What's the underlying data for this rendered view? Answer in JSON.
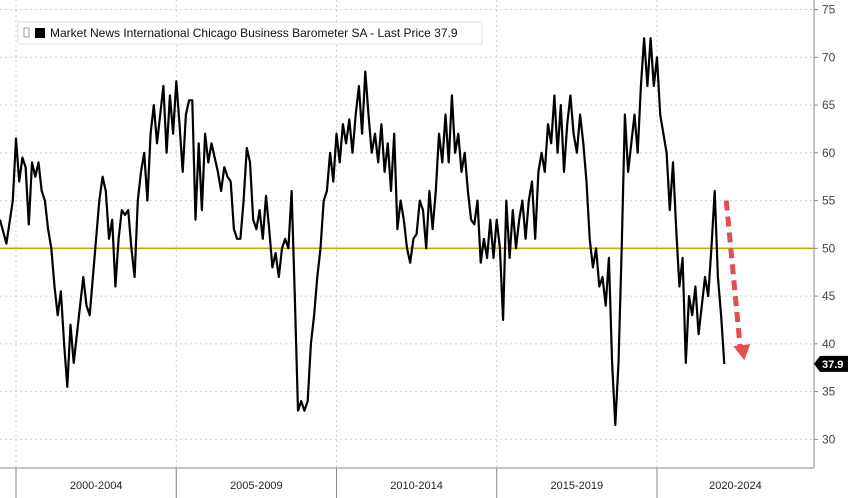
{
  "chart_data": {
    "type": "line",
    "title": "",
    "xlabel": "",
    "ylabel": "",
    "ylim": [
      27,
      76
    ],
    "y_ticks": [
      30,
      35,
      40,
      45,
      50,
      55,
      60,
      65,
      70,
      75
    ],
    "x_period_labels": [
      "2000-2004",
      "2005-2009",
      "2010-2014",
      "2015-2019",
      "2020-2024"
    ],
    "x_range": [
      1999.5,
      2024.9
    ],
    "reference_line": {
      "value": 50,
      "color": "#c9a800"
    },
    "series": [
      {
        "name": "Market News International Chicago Business Barometer SA",
        "color": "#000000",
        "points": [
          [
            1999.5,
            53.0
          ],
          [
            1999.7,
            50.5
          ],
          [
            1999.9,
            55.0
          ],
          [
            2000.0,
            61.5
          ],
          [
            2000.1,
            57.0
          ],
          [
            2000.2,
            59.5
          ],
          [
            2000.3,
            58.5
          ],
          [
            2000.4,
            52.5
          ],
          [
            2000.5,
            59.0
          ],
          [
            2000.6,
            57.5
          ],
          [
            2000.7,
            59.0
          ],
          [
            2000.8,
            56.0
          ],
          [
            2000.9,
            55.0
          ],
          [
            2001.0,
            52.0
          ],
          [
            2001.1,
            50.0
          ],
          [
            2001.2,
            46.0
          ],
          [
            2001.3,
            43.0
          ],
          [
            2001.4,
            45.5
          ],
          [
            2001.5,
            40.0
          ],
          [
            2001.6,
            35.5
          ],
          [
            2001.7,
            42.0
          ],
          [
            2001.8,
            38.0
          ],
          [
            2001.9,
            41.0
          ],
          [
            2002.0,
            44.0
          ],
          [
            2002.1,
            47.0
          ],
          [
            2002.2,
            44.0
          ],
          [
            2002.3,
            43.0
          ],
          [
            2002.4,
            47.0
          ],
          [
            2002.5,
            51.0
          ],
          [
            2002.6,
            55.0
          ],
          [
            2002.7,
            57.5
          ],
          [
            2002.8,
            56.0
          ],
          [
            2002.9,
            51.0
          ],
          [
            2003.0,
            53.0
          ],
          [
            2003.1,
            46.0
          ],
          [
            2003.2,
            51.0
          ],
          [
            2003.3,
            54.0
          ],
          [
            2003.4,
            53.5
          ],
          [
            2003.5,
            54.0
          ],
          [
            2003.6,
            50.0
          ],
          [
            2003.7,
            47.0
          ],
          [
            2003.8,
            55.0
          ],
          [
            2003.9,
            58.0
          ],
          [
            2004.0,
            60.0
          ],
          [
            2004.1,
            55.0
          ],
          [
            2004.2,
            62.0
          ],
          [
            2004.3,
            65.0
          ],
          [
            2004.4,
            61.0
          ],
          [
            2004.5,
            64.0
          ],
          [
            2004.6,
            67.0
          ],
          [
            2004.7,
            60.0
          ],
          [
            2004.8,
            66.0
          ],
          [
            2004.9,
            62.0
          ],
          [
            2005.0,
            67.5
          ],
          [
            2005.1,
            63.0
          ],
          [
            2005.2,
            58.0
          ],
          [
            2005.3,
            64.0
          ],
          [
            2005.4,
            65.5
          ],
          [
            2005.5,
            65.5
          ],
          [
            2005.6,
            53.0
          ],
          [
            2005.7,
            61.0
          ],
          [
            2005.8,
            54.0
          ],
          [
            2005.9,
            62.0
          ],
          [
            2006.0,
            59.0
          ],
          [
            2006.1,
            61.0
          ],
          [
            2006.2,
            59.5
          ],
          [
            2006.3,
            58.0
          ],
          [
            2006.4,
            56.0
          ],
          [
            2006.5,
            58.5
          ],
          [
            2006.6,
            57.5
          ],
          [
            2006.7,
            57.0
          ],
          [
            2006.8,
            52.0
          ],
          [
            2006.9,
            51.0
          ],
          [
            2007.0,
            51.0
          ],
          [
            2007.1,
            55.0
          ],
          [
            2007.2,
            60.5
          ],
          [
            2007.3,
            59.0
          ],
          [
            2007.4,
            53.0
          ],
          [
            2007.5,
            52.0
          ],
          [
            2007.6,
            54.0
          ],
          [
            2007.7,
            51.0
          ],
          [
            2007.8,
            55.5
          ],
          [
            2007.9,
            52.0
          ],
          [
            2008.0,
            48.0
          ],
          [
            2008.1,
            49.5
          ],
          [
            2008.2,
            47.0
          ],
          [
            2008.3,
            50.0
          ],
          [
            2008.4,
            51.0
          ],
          [
            2008.5,
            50.0
          ],
          [
            2008.6,
            56.0
          ],
          [
            2008.7,
            45.0
          ],
          [
            2008.8,
            33.0
          ],
          [
            2008.9,
            34.0
          ],
          [
            2009.0,
            33.0
          ],
          [
            2009.1,
            34.0
          ],
          [
            2009.2,
            40.0
          ],
          [
            2009.3,
            43.0
          ],
          [
            2009.4,
            47.0
          ],
          [
            2009.5,
            50.0
          ],
          [
            2009.6,
            55.0
          ],
          [
            2009.7,
            56.0
          ],
          [
            2009.8,
            60.0
          ],
          [
            2009.9,
            57.0
          ],
          [
            2010.0,
            62.0
          ],
          [
            2010.1,
            59.0
          ],
          [
            2010.2,
            63.0
          ],
          [
            2010.3,
            61.0
          ],
          [
            2010.4,
            63.5
          ],
          [
            2010.5,
            60.0
          ],
          [
            2010.6,
            64.0
          ],
          [
            2010.7,
            67.0
          ],
          [
            2010.8,
            62.0
          ],
          [
            2010.9,
            68.5
          ],
          [
            2011.0,
            64.0
          ],
          [
            2011.1,
            60.0
          ],
          [
            2011.2,
            62.0
          ],
          [
            2011.3,
            59.0
          ],
          [
            2011.4,
            63.0
          ],
          [
            2011.5,
            58.0
          ],
          [
            2011.6,
            61.0
          ],
          [
            2011.7,
            56.0
          ],
          [
            2011.8,
            62.0
          ],
          [
            2011.9,
            52.0
          ],
          [
            2012.0,
            55.0
          ],
          [
            2012.1,
            53.0
          ],
          [
            2012.2,
            50.0
          ],
          [
            2012.3,
            48.5
          ],
          [
            2012.4,
            51.0
          ],
          [
            2012.5,
            51.5
          ],
          [
            2012.6,
            55.0
          ],
          [
            2012.7,
            54.0
          ],
          [
            2012.8,
            50.0
          ],
          [
            2012.9,
            56.0
          ],
          [
            2013.0,
            52.0
          ],
          [
            2013.1,
            56.0
          ],
          [
            2013.2,
            62.0
          ],
          [
            2013.3,
            59.0
          ],
          [
            2013.4,
            64.0
          ],
          [
            2013.5,
            59.0
          ],
          [
            2013.6,
            66.0
          ],
          [
            2013.7,
            60.0
          ],
          [
            2013.8,
            62.0
          ],
          [
            2013.9,
            58.0
          ],
          [
            2014.0,
            60.0
          ],
          [
            2014.1,
            56.0
          ],
          [
            2014.2,
            53.0
          ],
          [
            2014.3,
            52.5
          ],
          [
            2014.4,
            55.0
          ],
          [
            2014.5,
            48.5
          ],
          [
            2014.6,
            51.0
          ],
          [
            2014.7,
            49.0
          ],
          [
            2014.8,
            53.0
          ],
          [
            2014.9,
            49.0
          ],
          [
            2015.0,
            53.0
          ],
          [
            2015.1,
            50.0
          ],
          [
            2015.2,
            42.5
          ],
          [
            2015.3,
            55.0
          ],
          [
            2015.4,
            49.0
          ],
          [
            2015.5,
            54.0
          ],
          [
            2015.6,
            50.0
          ],
          [
            2015.7,
            53.0
          ],
          [
            2015.8,
            55.0
          ],
          [
            2015.9,
            51.0
          ],
          [
            2016.0,
            55.0
          ],
          [
            2016.1,
            57.0
          ],
          [
            2016.2,
            51.0
          ],
          [
            2016.3,
            58.0
          ],
          [
            2016.4,
            60.0
          ],
          [
            2016.5,
            58.0
          ],
          [
            2016.6,
            63.0
          ],
          [
            2016.7,
            61.0
          ],
          [
            2016.8,
            66.0
          ],
          [
            2016.9,
            60.0
          ],
          [
            2017.0,
            65.0
          ],
          [
            2017.1,
            58.0
          ],
          [
            2017.2,
            63.0
          ],
          [
            2017.3,
            66.0
          ],
          [
            2017.4,
            62.0
          ],
          [
            2017.5,
            60.0
          ],
          [
            2017.6,
            64.0
          ],
          [
            2017.7,
            61.0
          ],
          [
            2017.8,
            57.0
          ],
          [
            2017.9,
            51.0
          ],
          [
            2018.0,
            48.0
          ],
          [
            2018.1,
            50.0
          ],
          [
            2018.2,
            46.0
          ],
          [
            2018.3,
            47.0
          ],
          [
            2018.4,
            44.0
          ],
          [
            2018.5,
            49.0
          ],
          [
            2018.6,
            38.0
          ],
          [
            2018.7,
            31.5
          ],
          [
            2018.8,
            38.0
          ],
          [
            2018.9,
            50.0
          ],
          [
            2019.0,
            64.0
          ],
          [
            2019.1,
            58.0
          ],
          [
            2019.2,
            61.0
          ],
          [
            2019.3,
            64.0
          ],
          [
            2019.4,
            60.0
          ],
          [
            2019.5,
            67.0
          ],
          [
            2019.6,
            72.0
          ],
          [
            2019.7,
            67.0
          ],
          [
            2019.8,
            72.0
          ],
          [
            2019.9,
            67.0
          ],
          [
            2020.0,
            70.0
          ],
          [
            2020.1,
            64.0
          ],
          [
            2020.2,
            62.0
          ],
          [
            2020.3,
            60.0
          ],
          [
            2020.4,
            54.0
          ],
          [
            2020.5,
            59.0
          ],
          [
            2020.6,
            52.0
          ],
          [
            2020.7,
            46.0
          ],
          [
            2020.8,
            49.0
          ],
          [
            2020.9,
            38.0
          ],
          [
            2021.0,
            45.0
          ],
          [
            2021.1,
            43.0
          ],
          [
            2021.2,
            46.0
          ],
          [
            2021.3,
            41.0
          ],
          [
            2021.4,
            44.0
          ],
          [
            2021.5,
            47.0
          ],
          [
            2021.6,
            45.0
          ],
          [
            2021.7,
            50.0
          ],
          [
            2021.8,
            56.0
          ],
          [
            2021.9,
            47.0
          ],
          [
            2022.0,
            43.0
          ],
          [
            2022.1,
            37.9
          ]
        ]
      }
    ],
    "legend": {
      "position": "top-left",
      "label": "Market News International Chicago Business Barometer SA - Last Price 37.9"
    },
    "last_price": {
      "label": "37.9",
      "value": 37.9,
      "color": "#000000"
    },
    "annotation": {
      "type": "dashed-arrow",
      "color": "#e05050",
      "from_value": 55.0,
      "to_value": 38.5
    },
    "grid": true
  }
}
